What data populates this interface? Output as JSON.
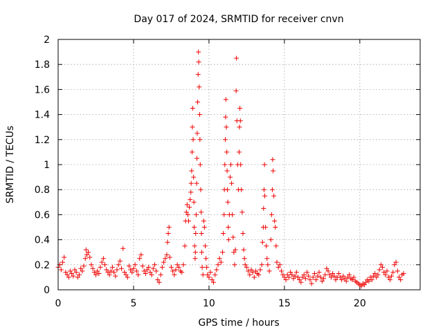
{
  "chart_data": {
    "type": "scatter",
    "title": "Day 017 of 2024, SRMTID for receiver cnvn",
    "xlabel": "GPS time / hours",
    "ylabel": "SRMTID / TECUs",
    "xlim": [
      0,
      24
    ],
    "ylim": [
      0,
      2
    ],
    "grid": true,
    "marker": "plus",
    "marker_color": "#ee0000",
    "x_ticks": [
      {
        "value": 0,
        "label": "0"
      },
      {
        "value": 5,
        "label": "5"
      },
      {
        "value": 10,
        "label": "10"
      },
      {
        "value": 15,
        "label": "15"
      },
      {
        "value": 20,
        "label": "20"
      }
    ],
    "y_ticks": [
      {
        "value": 0,
        "label": "0"
      },
      {
        "value": 0.2,
        "label": "0.2"
      },
      {
        "value": 0.4,
        "label": "0.4"
      },
      {
        "value": 0.6,
        "label": "0.6"
      },
      {
        "value": 0.8,
        "label": "0.8"
      },
      {
        "value": 1.0,
        "label": "1"
      },
      {
        "value": 1.2,
        "label": "1.2"
      },
      {
        "value": 1.4,
        "label": "1.4"
      },
      {
        "value": 1.6,
        "label": "1.6"
      },
      {
        "value": 1.8,
        "label": "1.8"
      },
      {
        "value": 2.0,
        "label": "2"
      }
    ],
    "series": [
      {
        "name": "SRMTID",
        "points": [
          [
            0.0,
            0.18
          ],
          [
            0.1,
            0.2
          ],
          [
            0.2,
            0.16
          ],
          [
            0.3,
            0.22
          ],
          [
            0.4,
            0.26
          ],
          [
            0.5,
            0.14
          ],
          [
            0.6,
            0.12
          ],
          [
            0.7,
            0.1
          ],
          [
            0.8,
            0.15
          ],
          [
            0.9,
            0.13
          ],
          [
            1.0,
            0.11
          ],
          [
            1.1,
            0.16
          ],
          [
            1.2,
            0.14
          ],
          [
            1.3,
            0.1
          ],
          [
            1.4,
            0.12
          ],
          [
            1.5,
            0.17
          ],
          [
            1.6,
            0.15
          ],
          [
            1.7,
            0.19
          ],
          [
            1.8,
            0.25
          ],
          [
            1.85,
            0.32
          ],
          [
            1.9,
            0.28
          ],
          [
            2.0,
            0.3
          ],
          [
            2.1,
            0.26
          ],
          [
            2.2,
            0.2
          ],
          [
            2.3,
            0.17
          ],
          [
            2.4,
            0.14
          ],
          [
            2.5,
            0.12
          ],
          [
            2.6,
            0.15
          ],
          [
            2.7,
            0.13
          ],
          [
            2.8,
            0.18
          ],
          [
            2.9,
            0.22
          ],
          [
            3.0,
            0.25
          ],
          [
            3.1,
            0.2
          ],
          [
            3.2,
            0.16
          ],
          [
            3.3,
            0.14
          ],
          [
            3.4,
            0.12
          ],
          [
            3.5,
            0.15
          ],
          [
            3.6,
            0.18
          ],
          [
            3.7,
            0.14
          ],
          [
            3.8,
            0.11
          ],
          [
            3.9,
            0.16
          ],
          [
            4.0,
            0.2
          ],
          [
            4.1,
            0.23
          ],
          [
            4.2,
            0.17
          ],
          [
            4.3,
            0.33
          ],
          [
            4.4,
            0.14
          ],
          [
            4.5,
            0.12
          ],
          [
            4.6,
            0.1
          ],
          [
            4.7,
            0.19
          ],
          [
            4.8,
            0.16
          ],
          [
            4.9,
            0.14
          ],
          [
            5.0,
            0.17
          ],
          [
            5.1,
            0.2
          ],
          [
            5.2,
            0.15
          ],
          [
            5.3,
            0.12
          ],
          [
            5.4,
            0.25
          ],
          [
            5.5,
            0.28
          ],
          [
            5.6,
            0.19
          ],
          [
            5.7,
            0.15
          ],
          [
            5.8,
            0.13
          ],
          [
            5.9,
            0.16
          ],
          [
            6.0,
            0.18
          ],
          [
            6.1,
            0.14
          ],
          [
            6.2,
            0.12
          ],
          [
            6.3,
            0.17
          ],
          [
            6.4,
            0.2
          ],
          [
            6.5,
            0.15
          ],
          [
            6.6,
            0.08
          ],
          [
            6.7,
            0.06
          ],
          [
            6.8,
            0.12
          ],
          [
            6.9,
            0.18
          ],
          [
            7.0,
            0.22
          ],
          [
            7.1,
            0.25
          ],
          [
            7.2,
            0.28
          ],
          [
            7.25,
            0.38
          ],
          [
            7.3,
            0.45
          ],
          [
            7.35,
            0.5
          ],
          [
            7.4,
            0.26
          ],
          [
            7.5,
            0.18
          ],
          [
            7.6,
            0.15
          ],
          [
            7.7,
            0.12
          ],
          [
            7.8,
            0.16
          ],
          [
            7.9,
            0.2
          ],
          [
            8.0,
            0.18
          ],
          [
            8.1,
            0.15
          ],
          [
            8.2,
            0.14
          ],
          [
            8.3,
            0.2
          ],
          [
            8.4,
            0.35
          ],
          [
            8.45,
            0.55
          ],
          [
            8.5,
            0.62
          ],
          [
            8.55,
            0.68
          ],
          [
            8.6,
            0.6
          ],
          [
            8.65,
            0.55
          ],
          [
            8.7,
            0.66
          ],
          [
            8.75,
            0.72
          ],
          [
            8.8,
            0.78
          ],
          [
            8.82,
            0.85
          ],
          [
            8.85,
            0.95
          ],
          [
            8.88,
            1.1
          ],
          [
            8.9,
            1.3
          ],
          [
            8.92,
            1.45
          ],
          [
            8.95,
            1.2
          ],
          [
            8.98,
            0.9
          ],
          [
            9.0,
            0.7
          ],
          [
            9.02,
            0.5
          ],
          [
            9.05,
            0.35
          ],
          [
            9.08,
            0.25
          ],
          [
            9.1,
            0.3
          ],
          [
            9.12,
            0.45
          ],
          [
            9.15,
            0.6
          ],
          [
            9.18,
            0.85
          ],
          [
            9.2,
            1.05
          ],
          [
            9.22,
            1.25
          ],
          [
            9.25,
            1.5
          ],
          [
            9.28,
            1.72
          ],
          [
            9.3,
            1.9
          ],
          [
            9.32,
            1.82
          ],
          [
            9.35,
            1.62
          ],
          [
            9.38,
            1.4
          ],
          [
            9.4,
            1.2
          ],
          [
            9.42,
            1.0
          ],
          [
            9.45,
            0.8
          ],
          [
            9.48,
            0.62
          ],
          [
            9.5,
            0.45
          ],
          [
            9.52,
            0.3
          ],
          [
            9.55,
            0.18
          ],
          [
            9.6,
            0.12
          ],
          [
            9.65,
            0.55
          ],
          [
            9.7,
            0.5
          ],
          [
            9.75,
            0.35
          ],
          [
            9.8,
            0.25
          ],
          [
            9.85,
            0.18
          ],
          [
            9.9,
            0.12
          ],
          [
            10.0,
            0.1
          ],
          [
            10.1,
            0.14
          ],
          [
            10.2,
            0.08
          ],
          [
            10.3,
            0.06
          ],
          [
            10.4,
            0.12
          ],
          [
            10.5,
            0.16
          ],
          [
            10.6,
            0.2
          ],
          [
            10.7,
            0.25
          ],
          [
            10.8,
            0.22
          ],
          [
            10.9,
            0.3
          ],
          [
            10.95,
            0.45
          ],
          [
            11.0,
            0.6
          ],
          [
            11.02,
            0.8
          ],
          [
            11.05,
            1.0
          ],
          [
            11.08,
            1.2
          ],
          [
            11.1,
            1.38
          ],
          [
            11.12,
            1.52
          ],
          [
            11.15,
            1.3
          ],
          [
            11.18,
            1.1
          ],
          [
            11.2,
            0.95
          ],
          [
            11.22,
            0.8
          ],
          [
            11.25,
            0.7
          ],
          [
            11.28,
            0.5
          ],
          [
            11.3,
            0.4
          ],
          [
            11.35,
            0.6
          ],
          [
            11.4,
            0.9
          ],
          [
            11.45,
            1.0
          ],
          [
            11.5,
            0.85
          ],
          [
            11.55,
            0.6
          ],
          [
            11.6,
            0.42
          ],
          [
            11.65,
            0.3
          ],
          [
            11.7,
            0.2
          ],
          [
            11.75,
            0.32
          ],
          [
            11.8,
            1.59
          ],
          [
            11.82,
            1.85
          ],
          [
            11.85,
            1.35
          ],
          [
            11.9,
            1.0
          ],
          [
            11.95,
            0.8
          ],
          [
            12.0,
            1.1
          ],
          [
            12.02,
            1.3
          ],
          [
            12.05,
            1.45
          ],
          [
            12.08,
            1.35
          ],
          [
            12.1,
            1.0
          ],
          [
            12.15,
            0.8
          ],
          [
            12.2,
            0.62
          ],
          [
            12.25,
            0.45
          ],
          [
            12.3,
            0.32
          ],
          [
            12.35,
            0.25
          ],
          [
            12.4,
            0.2
          ],
          [
            12.5,
            0.18
          ],
          [
            12.6,
            0.15
          ],
          [
            12.7,
            0.12
          ],
          [
            12.8,
            0.16
          ],
          [
            12.9,
            0.14
          ],
          [
            13.0,
            0.1
          ],
          [
            13.1,
            0.15
          ],
          [
            13.2,
            0.13
          ],
          [
            13.3,
            0.12
          ],
          [
            13.4,
            0.16
          ],
          [
            13.5,
            0.2
          ],
          [
            13.55,
            0.38
          ],
          [
            13.6,
            0.5
          ],
          [
            13.62,
            0.65
          ],
          [
            13.65,
            0.8
          ],
          [
            13.68,
            1.0
          ],
          [
            13.7,
            0.75
          ],
          [
            13.75,
            0.5
          ],
          [
            13.8,
            0.35
          ],
          [
            13.85,
            0.25
          ],
          [
            13.9,
            0.2
          ],
          [
            14.0,
            0.15
          ],
          [
            14.1,
            0.4
          ],
          [
            14.15,
            0.6
          ],
          [
            14.2,
            0.8
          ],
          [
            14.22,
            1.04
          ],
          [
            14.25,
            0.95
          ],
          [
            14.3,
            0.75
          ],
          [
            14.35,
            0.55
          ],
          [
            14.4,
            0.5
          ],
          [
            14.45,
            0.35
          ],
          [
            14.5,
            0.22
          ],
          [
            14.6,
            0.18
          ],
          [
            14.7,
            0.2
          ],
          [
            14.8,
            0.15
          ],
          [
            14.9,
            0.12
          ],
          [
            15.0,
            0.1
          ],
          [
            15.1,
            0.08
          ],
          [
            15.2,
            0.12
          ],
          [
            15.3,
            0.1
          ],
          [
            15.4,
            0.14
          ],
          [
            15.5,
            0.12
          ],
          [
            15.6,
            0.09
          ],
          [
            15.7,
            0.11
          ],
          [
            15.8,
            0.14
          ],
          [
            15.9,
            0.1
          ],
          [
            16.0,
            0.08
          ],
          [
            16.1,
            0.06
          ],
          [
            16.2,
            0.1
          ],
          [
            16.3,
            0.12
          ],
          [
            16.4,
            0.09
          ],
          [
            16.5,
            0.14
          ],
          [
            16.6,
            0.11
          ],
          [
            16.7,
            0.08
          ],
          [
            16.8,
            0.05
          ],
          [
            16.9,
            0.1
          ],
          [
            17.0,
            0.13
          ],
          [
            17.1,
            0.08
          ],
          [
            17.2,
            0.11
          ],
          [
            17.3,
            0.14
          ],
          [
            17.4,
            0.1
          ],
          [
            17.5,
            0.07
          ],
          [
            17.6,
            0.09
          ],
          [
            17.7,
            0.12
          ],
          [
            17.8,
            0.17
          ],
          [
            17.9,
            0.15
          ],
          [
            18.0,
            0.12
          ],
          [
            18.1,
            0.1
          ],
          [
            18.2,
            0.13
          ],
          [
            18.3,
            0.11
          ],
          [
            18.4,
            0.08
          ],
          [
            18.5,
            0.1
          ],
          [
            18.6,
            0.13
          ],
          [
            18.7,
            0.1
          ],
          [
            18.8,
            0.08
          ],
          [
            18.9,
            0.11
          ],
          [
            19.0,
            0.09
          ],
          [
            19.1,
            0.07
          ],
          [
            19.2,
            0.1
          ],
          [
            19.3,
            0.12
          ],
          [
            19.4,
            0.09
          ],
          [
            19.5,
            0.08
          ],
          [
            19.6,
            0.1
          ],
          [
            19.7,
            0.07
          ],
          [
            19.8,
            0.06
          ],
          [
            19.9,
            0.05
          ],
          [
            20.0,
            0.04
          ],
          [
            20.1,
            0.03
          ],
          [
            20.2,
            0.05
          ],
          [
            20.3,
            0.04
          ],
          [
            20.4,
            0.06
          ],
          [
            20.5,
            0.08
          ],
          [
            20.6,
            0.07
          ],
          [
            20.7,
            0.1
          ],
          [
            20.8,
            0.08
          ],
          [
            20.9,
            0.11
          ],
          [
            21.0,
            0.13
          ],
          [
            21.1,
            0.1
          ],
          [
            21.2,
            0.12
          ],
          [
            21.3,
            0.16
          ],
          [
            21.4,
            0.2
          ],
          [
            21.5,
            0.18
          ],
          [
            21.6,
            0.14
          ],
          [
            21.7,
            0.12
          ],
          [
            21.8,
            0.15
          ],
          [
            21.9,
            0.1
          ],
          [
            22.0,
            0.08
          ],
          [
            22.1,
            0.11
          ],
          [
            22.2,
            0.14
          ],
          [
            22.3,
            0.2
          ],
          [
            22.4,
            0.22
          ],
          [
            22.5,
            0.15
          ],
          [
            22.6,
            0.1
          ],
          [
            22.7,
            0.08
          ],
          [
            22.8,
            0.12
          ],
          [
            22.9,
            0.13
          ]
        ]
      }
    ]
  }
}
